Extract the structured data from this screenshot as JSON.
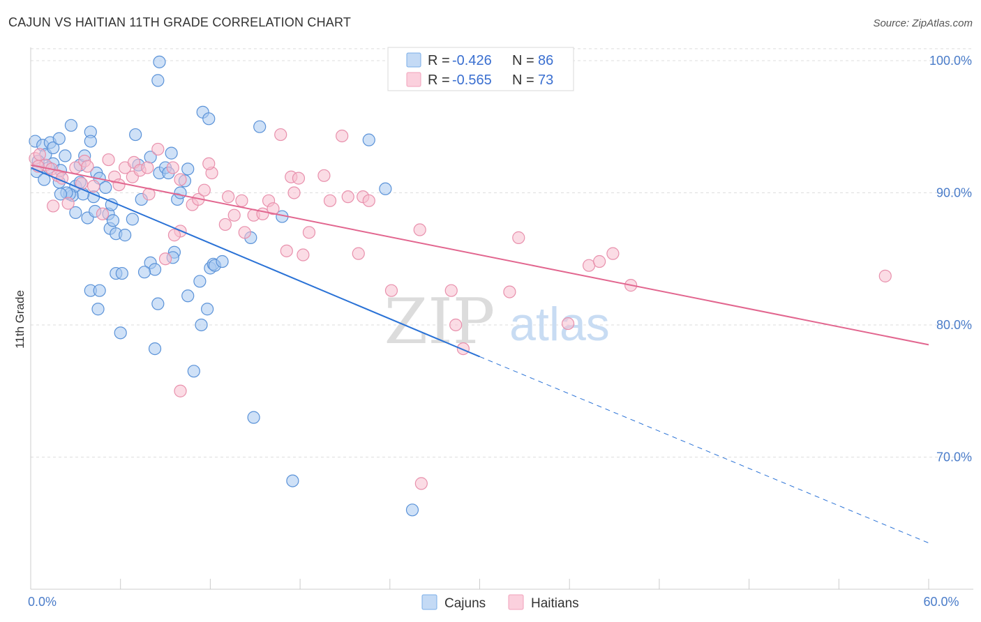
{
  "header": {
    "title": "CAJUN VS HAITIAN 11TH GRADE CORRELATION CHART",
    "source": "Source: ZipAtlas.com"
  },
  "watermark": {
    "zip": "ZIP",
    "atlas": "atlas"
  },
  "legend_top": [
    {
      "r_label": "R = ",
      "r_value": "-0.426",
      "n_label": "N = ",
      "n_value": "86",
      "color": "#7aaee8"
    },
    {
      "r_label": "R = ",
      "r_value": "-0.565",
      "n_label": "N = ",
      "n_value": "73",
      "color": "#f2a2bb"
    }
  ],
  "legend_bottom": [
    "Cajuns",
    "Haitians"
  ],
  "colors": {
    "cajun_fill": "#a8c8f0",
    "cajun_stroke": "#5a92d8",
    "cajun_line": "#2a72d6",
    "haitian_fill": "#f8c0d0",
    "haitian_stroke": "#e890ac",
    "haitian_line": "#e2668f",
    "tick": "#4a7cc9",
    "grid": "#dddddd"
  },
  "chart_data": {
    "type": "scatter",
    "title": "CAJUN VS HAITIAN 11TH GRADE CORRELATION CHART",
    "xlabel": "",
    "ylabel": "11th Grade",
    "xlim": [
      0,
      60
    ],
    "ylim": [
      60.0,
      101.0
    ],
    "x_tick_labels": [
      {
        "value": 0,
        "label": "0.0%"
      },
      {
        "value": 60,
        "label": "60.0%"
      }
    ],
    "y_tick_labels": [
      {
        "value": 100,
        "label": "100.0%"
      },
      {
        "value": 90,
        "label": "90.0%"
      },
      {
        "value": 80,
        "label": "80.0%"
      },
      {
        "value": 70,
        "label": "70.0%"
      }
    ],
    "grid": true,
    "legend_position": "top-center",
    "series": [
      {
        "name": "Cajuns",
        "r": -0.426,
        "n": 86,
        "trend": {
          "x0": 0,
          "y0": 91.9,
          "x1": 30,
          "y1": 77.6,
          "dashed_to_x": 60,
          "dashed_to_y": 63.5
        },
        "points": [
          [
            0.3,
            93.9
          ],
          [
            0.8,
            93.6
          ],
          [
            1.0,
            92.9
          ],
          [
            1.3,
            93.8
          ],
          [
            1.5,
            93.4
          ],
          [
            1.5,
            92.2
          ],
          [
            1.9,
            94.1
          ],
          [
            0.5,
            92.4
          ],
          [
            1.2,
            91.9
          ],
          [
            0.4,
            91.6
          ],
          [
            0.9,
            91.0
          ],
          [
            2.0,
            91.7
          ],
          [
            2.3,
            92.8
          ],
          [
            2.7,
            95.1
          ],
          [
            2.8,
            89.8
          ],
          [
            3.0,
            90.5
          ],
          [
            3.3,
            92.1
          ],
          [
            3.6,
            92.8
          ],
          [
            4.0,
            94.6
          ],
          [
            4.0,
            93.9
          ],
          [
            4.4,
            91.5
          ],
          [
            4.6,
            91.1
          ],
          [
            5.0,
            90.4
          ],
          [
            5.2,
            88.4
          ],
          [
            5.3,
            87.3
          ],
          [
            5.7,
            86.9
          ],
          [
            5.5,
            87.9
          ],
          [
            4.2,
            89.7
          ],
          [
            3.5,
            89.9
          ],
          [
            3.8,
            88.1
          ],
          [
            4.3,
            88.6
          ],
          [
            3.0,
            88.5
          ],
          [
            2.6,
            89.9
          ],
          [
            2.4,
            90.0
          ],
          [
            2.0,
            89.9
          ],
          [
            1.9,
            90.8
          ],
          [
            3.3,
            90.8
          ],
          [
            5.7,
            83.9
          ],
          [
            4.0,
            82.6
          ],
          [
            4.6,
            82.6
          ],
          [
            4.5,
            81.2
          ],
          [
            6.0,
            79.4
          ],
          [
            6.1,
            83.9
          ],
          [
            7.0,
            94.4
          ],
          [
            7.2,
            92.1
          ],
          [
            7.4,
            89.5
          ],
          [
            8.0,
            84.7
          ],
          [
            8.3,
            84.2
          ],
          [
            7.6,
            84.0
          ],
          [
            8.5,
            81.6
          ],
          [
            9.6,
            85.5
          ],
          [
            9.5,
            85.1
          ],
          [
            8.0,
            92.7
          ],
          [
            8.6,
            91.5
          ],
          [
            9.0,
            91.9
          ],
          [
            9.2,
            91.5
          ],
          [
            9.4,
            93.0
          ],
          [
            9.8,
            89.5
          ],
          [
            10.0,
            90.0
          ],
          [
            10.3,
            90.9
          ],
          [
            8.3,
            78.2
          ],
          [
            8.5,
            98.5
          ],
          [
            8.6,
            99.9
          ],
          [
            11.5,
            96.1
          ],
          [
            11.9,
            95.6
          ],
          [
            11.3,
            83.3
          ],
          [
            10.5,
            82.2
          ],
          [
            12.0,
            84.3
          ],
          [
            11.8,
            81.2
          ],
          [
            12.2,
            84.6
          ],
          [
            12.3,
            84.5
          ],
          [
            10.9,
            76.5
          ],
          [
            11.4,
            80.0
          ],
          [
            12.8,
            84.8
          ],
          [
            14.7,
            86.6
          ],
          [
            15.3,
            95.0
          ],
          [
            16.8,
            88.2
          ],
          [
            14.9,
            73.0
          ],
          [
            17.5,
            68.2
          ],
          [
            22.6,
            94.0
          ],
          [
            23.7,
            90.3
          ],
          [
            25.5,
            66.0
          ],
          [
            10.5,
            91.8
          ],
          [
            6.8,
            88.0
          ],
          [
            6.3,
            86.8
          ],
          [
            5.4,
            89.1
          ]
        ]
      },
      {
        "name": "Haitians",
        "r": -0.565,
        "n": 73,
        "trend": {
          "x0": 0,
          "y0": 92.1,
          "x1": 60,
          "y1": 78.5
        },
        "points": [
          [
            0.3,
            92.6
          ],
          [
            0.6,
            92.9
          ],
          [
            1.0,
            92.1
          ],
          [
            1.4,
            91.8
          ],
          [
            1.8,
            91.3
          ],
          [
            2.1,
            91.1
          ],
          [
            2.5,
            89.2
          ],
          [
            1.5,
            89.0
          ],
          [
            3.0,
            91.9
          ],
          [
            3.4,
            90.7
          ],
          [
            3.6,
            92.4
          ],
          [
            3.8,
            92.0
          ],
          [
            4.2,
            90.5
          ],
          [
            4.8,
            88.4
          ],
          [
            5.2,
            92.5
          ],
          [
            5.6,
            91.2
          ],
          [
            5.9,
            90.6
          ],
          [
            6.3,
            91.9
          ],
          [
            6.8,
            91.2
          ],
          [
            6.9,
            92.3
          ],
          [
            7.3,
            91.7
          ],
          [
            7.8,
            91.9
          ],
          [
            7.9,
            89.9
          ],
          [
            8.5,
            93.3
          ],
          [
            9.5,
            91.9
          ],
          [
            10.0,
            91.0
          ],
          [
            10.8,
            89.1
          ],
          [
            11.2,
            89.5
          ],
          [
            11.6,
            90.2
          ],
          [
            12.1,
            91.5
          ],
          [
            11.9,
            92.2
          ],
          [
            13.0,
            87.6
          ],
          [
            13.2,
            89.7
          ],
          [
            13.6,
            88.3
          ],
          [
            14.1,
            89.4
          ],
          [
            14.3,
            87.0
          ],
          [
            14.9,
            88.3
          ],
          [
            15.5,
            88.4
          ],
          [
            15.9,
            89.4
          ],
          [
            16.2,
            88.8
          ],
          [
            16.7,
            94.4
          ],
          [
            17.1,
            85.6
          ],
          [
            17.4,
            91.2
          ],
          [
            17.6,
            90.0
          ],
          [
            17.9,
            91.1
          ],
          [
            18.2,
            85.3
          ],
          [
            18.6,
            87.0
          ],
          [
            19.6,
            91.3
          ],
          [
            20.0,
            89.4
          ],
          [
            20.8,
            94.3
          ],
          [
            21.2,
            89.7
          ],
          [
            21.9,
            85.4
          ],
          [
            22.2,
            89.7
          ],
          [
            22.6,
            89.4
          ],
          [
            10.0,
            87.1
          ],
          [
            9.0,
            85.0
          ],
          [
            9.6,
            86.8
          ],
          [
            24.1,
            82.6
          ],
          [
            26.0,
            87.2
          ],
          [
            28.1,
            82.6
          ],
          [
            28.4,
            80.0
          ],
          [
            28.9,
            78.2
          ],
          [
            32.0,
            82.5
          ],
          [
            32.6,
            86.6
          ],
          [
            35.9,
            80.1
          ],
          [
            37.3,
            84.5
          ],
          [
            38.0,
            84.8
          ],
          [
            38.9,
            85.4
          ],
          [
            40.1,
            83.0
          ],
          [
            57.1,
            83.7
          ],
          [
            10.0,
            75.0
          ],
          [
            26.1,
            68.0
          ],
          [
            0.5,
            92.0
          ]
        ]
      }
    ]
  }
}
